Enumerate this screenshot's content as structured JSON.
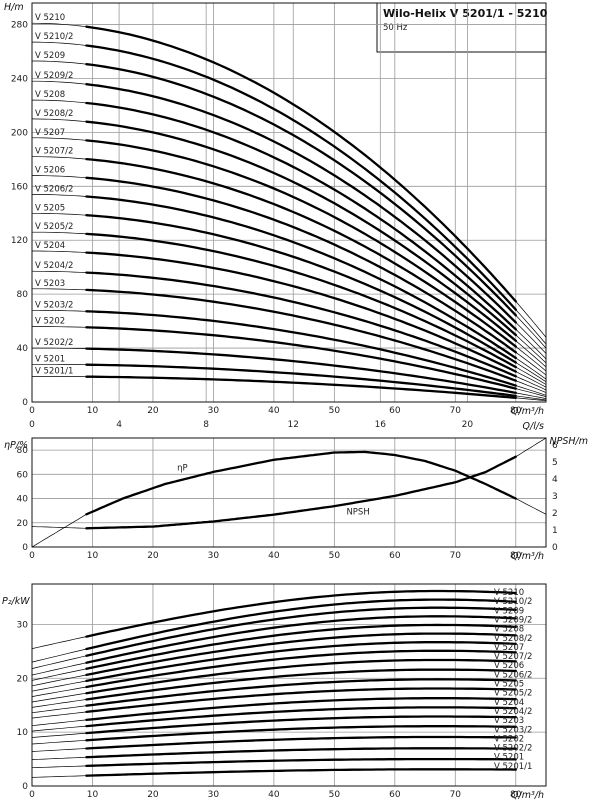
{
  "title_block": {
    "title": "Wilo-Helix V 5201/1 - 5210",
    "subtitle": "50 Hz"
  },
  "chart_data": [
    {
      "type": "line",
      "ylabel": "H/m",
      "xlabel": "Q/m³/h",
      "x2label": "Q/l/s",
      "xlim": [
        0,
        85
      ],
      "ylim": [
        0,
        296
      ],
      "xticks": [
        0,
        10,
        20,
        30,
        40,
        50,
        60,
        70,
        80
      ],
      "x2ticks": [
        0,
        4,
        8,
        12,
        16,
        20
      ],
      "yticks": [
        0,
        40,
        80,
        120,
        160,
        200,
        240,
        280
      ],
      "grid": true,
      "series": [
        {
          "name": "V 5210",
          "h0": 281,
          "hend": 48
        },
        {
          "name": "V 5210/2",
          "h0": 267,
          "hend": 43
        },
        {
          "name": "V 5209",
          "h0": 253,
          "hend": 40
        },
        {
          "name": "V 5209/2",
          "h0": 238,
          "hend": 36
        },
        {
          "name": "V 5208",
          "h0": 224,
          "hend": 32
        },
        {
          "name": "V 5208/2",
          "h0": 210,
          "hend": 29
        },
        {
          "name": "V 5207",
          "h0": 196,
          "hend": 26
        },
        {
          "name": "V 5207/2",
          "h0": 182,
          "hend": 23
        },
        {
          "name": "V 5206",
          "h0": 168,
          "hend": 20
        },
        {
          "name": "V 5206/2",
          "h0": 154,
          "hend": 17
        },
        {
          "name": "V 5205",
          "h0": 140,
          "hend": 15
        },
        {
          "name": "V 5205/2",
          "h0": 126,
          "hend": 13
        },
        {
          "name": "V 5204",
          "h0": 112,
          "hend": 11
        },
        {
          "name": "V 5204/2",
          "h0": 97,
          "hend": 9
        },
        {
          "name": "V 5203",
          "h0": 84,
          "hend": 7
        },
        {
          "name": "V 5203/2",
          "h0": 68,
          "hend": 5
        },
        {
          "name": "V 5202",
          "h0": 56,
          "hend": 4
        },
        {
          "name": "V 5202/2",
          "h0": 40,
          "hend": 2.5
        },
        {
          "name": "V 5201",
          "h0": 28,
          "hend": 1.5
        },
        {
          "name": "V 5201/1",
          "h0": 19,
          "hend": 1
        }
      ]
    },
    {
      "type": "line",
      "ylabel": "ηP/%",
      "y2label": "NPSH/m",
      "xlabel": "Q/m³/h",
      "xlim": [
        0,
        85
      ],
      "ylim": [
        0,
        90
      ],
      "y2lim": [
        0,
        6.4
      ],
      "xticks": [
        0,
        10,
        20,
        30,
        40,
        50,
        60,
        70,
        80
      ],
      "yticks": [
        0,
        20,
        40,
        60,
        80
      ],
      "y2ticks": [
        0,
        1,
        2,
        3,
        4,
        5,
        6
      ],
      "grid": true,
      "series": [
        {
          "name": "ηP",
          "x": [
            0,
            9,
            15,
            22,
            30,
            40,
            50,
            55,
            60,
            65,
            70,
            75,
            80,
            85
          ],
          "y": [
            0,
            27,
            40,
            52,
            62,
            72,
            78,
            78.5,
            76,
            71,
            63,
            52,
            40,
            27
          ]
        },
        {
          "name": "NPSH",
          "x": [
            0,
            9,
            20,
            30,
            40,
            50,
            60,
            70,
            75,
            80,
            85
          ],
          "y": [
            1.2,
            1.1,
            1.2,
            1.5,
            1.9,
            2.4,
            3.0,
            3.8,
            4.4,
            5.3,
            6.4
          ]
        }
      ]
    },
    {
      "type": "line",
      "ylabel": "P₂/kW",
      "xlabel": "Q/m³/h",
      "xlim": [
        0,
        85
      ],
      "ylim": [
        0,
        37.5
      ],
      "xticks": [
        0,
        10,
        20,
        30,
        40,
        50,
        60,
        70,
        80
      ],
      "yticks": [
        0,
        10,
        20,
        30
      ],
      "grid": true,
      "series": [
        {
          "name": "V 5210",
          "p0": 25.5,
          "pmax": 36.2
        },
        {
          "name": "V 5210/2",
          "p0": 23.0,
          "pmax": 34.6
        },
        {
          "name": "V 5209",
          "p0": 21.8,
          "pmax": 33.1
        },
        {
          "name": "V 5209/2",
          "p0": 20.6,
          "pmax": 31.5
        },
        {
          "name": "V 5208",
          "p0": 19.6,
          "pmax": 29.9
        },
        {
          "name": "V 5208/2",
          "p0": 18.6,
          "pmax": 28.3
        },
        {
          "name": "V 5207",
          "p0": 17.6,
          "pmax": 26.7
        },
        {
          "name": "V 5207/2",
          "p0": 16.6,
          "pmax": 25.1
        },
        {
          "name": "V 5206",
          "p0": 15.6,
          "pmax": 23.4
        },
        {
          "name": "V 5206/2",
          "p0": 14.6,
          "pmax": 21.6
        },
        {
          "name": "V 5205",
          "p0": 13.6,
          "pmax": 19.8
        },
        {
          "name": "V 5205/2",
          "p0": 12.6,
          "pmax": 18.1
        },
        {
          "name": "V 5204",
          "p0": 11.2,
          "pmax": 16.3
        },
        {
          "name": "V 5204/2",
          "p0": 10.2,
          "pmax": 14.6
        },
        {
          "name": "V 5203",
          "p0": 9.0,
          "pmax": 12.9
        },
        {
          "name": "V 5203/2",
          "p0": 7.8,
          "pmax": 11.1
        },
        {
          "name": "V 5202",
          "p0": 6.4,
          "pmax": 9.1
        },
        {
          "name": "V 5202/2",
          "p0": 4.9,
          "pmax": 7.0
        },
        {
          "name": "V 5201",
          "p0": 3.4,
          "pmax": 5.0
        },
        {
          "name": "V 5201/1",
          "p0": 1.6,
          "pmax": 3.1
        }
      ]
    }
  ]
}
